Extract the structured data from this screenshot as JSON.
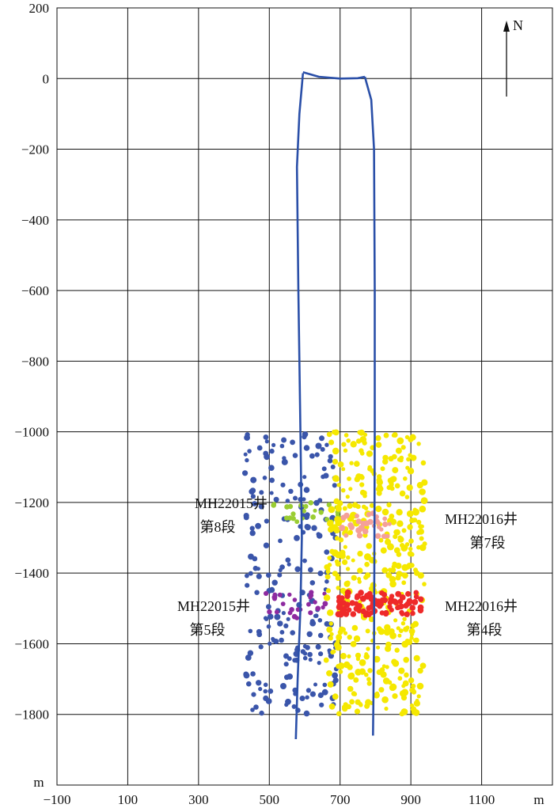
{
  "chart_data": {
    "type": "scatter",
    "title": "",
    "xlabel": "",
    "ylabel": "",
    "x_unit": "m",
    "y_unit": "m",
    "xlim": [
      -100,
      1300
    ],
    "ylim": [
      -2000,
      200
    ],
    "x_ticks": [
      -100,
      100,
      300,
      500,
      700,
      900,
      1100
    ],
    "x_tick_labels": [
      "−100",
      "100",
      "300",
      "500",
      "700",
      "900",
      "1100"
    ],
    "y_ticks": [
      200,
      0,
      -200,
      -400,
      -600,
      -800,
      -1000,
      -1200,
      -1400,
      -1600,
      -1800
    ],
    "y_tick_labels": [
      "200",
      "0",
      "−200",
      "−400",
      "−600",
      "−800",
      "−1000",
      "−1200",
      "−1400",
      "−1600",
      "−1800"
    ],
    "grid": true,
    "north_arrow": "N",
    "wells": [
      {
        "color": "#2a4fa8",
        "points": [
          [
            595,
            15
          ],
          [
            585,
            -100
          ],
          [
            578,
            -250
          ],
          [
            582,
            -600
          ],
          [
            588,
            -1000
          ],
          [
            592,
            -1300
          ],
          [
            588,
            -1500
          ],
          [
            580,
            -1700
          ],
          [
            575,
            -1870
          ]
        ]
      },
      {
        "color": "#2a4fa8",
        "points": [
          [
            770,
            5
          ],
          [
            788,
            -60
          ],
          [
            796,
            -200
          ],
          [
            798,
            -600
          ],
          [
            798,
            -1000
          ],
          [
            797,
            -1300
          ],
          [
            796,
            -1600
          ],
          [
            793,
            -1860
          ]
        ]
      },
      {
        "color": "#2a4fa8",
        "points": [
          [
            595,
            18
          ],
          [
            640,
            5
          ],
          [
            700,
            0
          ],
          [
            750,
            1
          ],
          [
            770,
            5
          ]
        ]
      }
    ],
    "series": [
      {
        "stage": "MH22015井 第8段",
        "color": "#3a55aa",
        "region": {
          "x": [
            430,
            690
          ],
          "y": [
            -1800,
            -1000
          ]
        },
        "count": 220,
        "size": [
          3,
          6
        ]
      },
      {
        "stage": "MH22015井 第8段",
        "color": "#9acd32",
        "region": {
          "x": [
            500,
            700
          ],
          "y": [
            -1260,
            -1200
          ]
        },
        "count": 26,
        "size": [
          3,
          5
        ]
      },
      {
        "stage": "MH22015井 第5段",
        "color": "#8e2aa0",
        "region": {
          "x": [
            490,
            660
          ],
          "y": [
            -1530,
            -1440
          ]
        },
        "count": 26,
        "size": [
          3,
          5
        ]
      },
      {
        "stage": "MH22016井 第7段",
        "color": "#f5e800",
        "region": {
          "x": [
            660,
            940
          ],
          "y": [
            -1800,
            -1000
          ]
        },
        "count": 420,
        "size": [
          3,
          7
        ]
      },
      {
        "stage": "MH22016井 第7段",
        "color": "#f4a09a",
        "region": {
          "x": [
            700,
            840
          ],
          "y": [
            -1300,
            -1230
          ]
        },
        "count": 30,
        "size": [
          3,
          6
        ]
      },
      {
        "stage": "MH22016井 第4段",
        "color": "#ee2a2a",
        "region": {
          "x": [
            690,
            930
          ],
          "y": [
            -1520,
            -1455
          ]
        },
        "count": 90,
        "size": [
          4,
          6
        ]
      }
    ],
    "annotations": [
      {
        "lines": [
          "MH22015井",
          "第8段"
        ]
      },
      {
        "lines": [
          "MH22016井",
          "第7段"
        ]
      },
      {
        "lines": [
          "MH22015井",
          "第5段"
        ]
      },
      {
        "lines": [
          "MH22016井",
          "第4段"
        ]
      }
    ]
  }
}
